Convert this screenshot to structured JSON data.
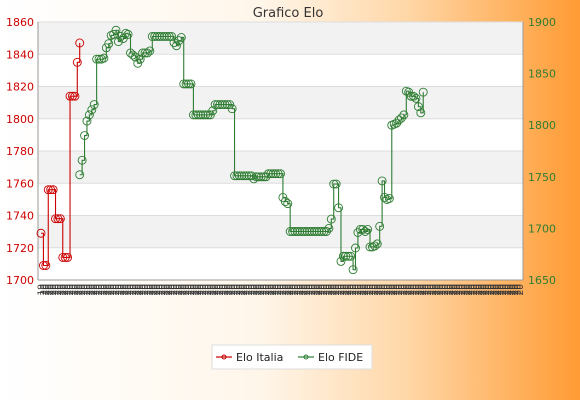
{
  "chart_data": {
    "type": "line",
    "title": "Grafico Elo",
    "legend_position": "bottom",
    "grid": true,
    "y_left": {
      "min": 1700,
      "max": 1860,
      "ticks": [
        1700,
        1720,
        1740,
        1760,
        1780,
        1800,
        1820,
        1840,
        1860
      ],
      "color": "#cc0000"
    },
    "y_right": {
      "min": 1650,
      "max": 1900,
      "ticks": [
        1650,
        1700,
        1750,
        1800,
        1850,
        1900
      ],
      "color": "#2e7d32"
    },
    "x_tick_labels": [
      "19",
      "20",
      "20",
      "20",
      "20",
      "20",
      "20",
      "20",
      "20",
      "20",
      "20",
      "20",
      "20",
      "20",
      "20",
      "20",
      "20",
      "20",
      "20",
      "20",
      "20",
      "20",
      "20",
      "20",
      "20",
      "20",
      "20",
      "20",
      "20",
      "20",
      "20",
      "20",
      "20",
      "20",
      "20",
      "20",
      "20",
      "20",
      "20",
      "20",
      "20",
      "20",
      "20",
      "20",
      "20",
      "20",
      "20",
      "20",
      "20",
      "20",
      "20",
      "20",
      "20",
      "20",
      "20",
      "20",
      "20",
      "20",
      "20",
      "20",
      "20",
      "20",
      "20",
      "20",
      "20",
      "20",
      "20",
      "20",
      "20",
      "20",
      "20",
      "20",
      "20",
      "20",
      "20",
      "20",
      "20",
      "20",
      "20",
      "20",
      "20",
      "20",
      "20",
      "20",
      "20",
      "20",
      "20",
      "20",
      "20",
      "20",
      "20",
      "20",
      "20",
      "20",
      "20",
      "20",
      "20",
      "20",
      "20",
      "20",
      "20",
      "20",
      "20",
      "20",
      "20",
      "20",
      "20",
      "20",
      "20",
      "20",
      "20",
      "20",
      "20",
      "20",
      "20",
      "20",
      "20",
      "20",
      "20",
      "20",
      "20",
      "20",
      "20",
      "20",
      "20",
      "20",
      "20",
      "20",
      "20",
      "20",
      "20",
      "20",
      "20",
      "20",
      "20",
      "20",
      "20",
      "20",
      "20",
      "20",
      "20",
      "20",
      "20",
      "20",
      "20",
      "20",
      "20",
      "20",
      "20",
      "20",
      "20",
      "20",
      "20",
      "20",
      "20",
      "20",
      "20",
      "20",
      "20",
      "20",
      "20",
      "20",
      "20",
      "20",
      "20",
      "20",
      "20",
      "20",
      "20",
      "20",
      "20",
      "20",
      "20",
      "20",
      "20",
      "20",
      "20",
      "20",
      "20",
      "20",
      "20",
      "20",
      "20",
      "20",
      "20",
      "20",
      "20",
      "20",
      "20",
      "20",
      "20",
      "20",
      "20",
      "20",
      "20",
      "20",
      "20",
      "20",
      "20"
    ],
    "series": [
      {
        "name": "Elo Italia",
        "axis": "left",
        "color": "#cc0000",
        "start_index": 0,
        "values": [
          1729,
          1709,
          1709,
          1756,
          1756,
          1756,
          1738,
          1738,
          1738,
          1714,
          1714,
          1714,
          1814,
          1814,
          1814,
          1835,
          1847
        ]
      },
      {
        "name": "Elo FIDE",
        "axis": "right",
        "color": "#2e7d32",
        "start_index": 16,
        "values": [
          1752,
          1766,
          1790,
          1804,
          1810,
          1815,
          1820,
          1864,
          1864,
          1864,
          1865,
          1875,
          1879,
          1887,
          1888,
          1892,
          1881,
          1886,
          1884,
          1889,
          1888,
          1870,
          1868,
          1866,
          1860,
          1864,
          1870,
          1870,
          1870,
          1872,
          1886,
          1886,
          1886,
          1886,
          1886,
          1886,
          1886,
          1886,
          1886,
          1880,
          1877,
          1882,
          1885,
          1840,
          1840,
          1840,
          1840,
          1810,
          1810,
          1810,
          1810,
          1810,
          1810,
          1810,
          1810,
          1814,
          1820,
          1820,
          1820,
          1820,
          1820,
          1820,
          1820,
          1816,
          1751,
          1751,
          1751,
          1751,
          1751,
          1751,
          1751,
          1751,
          1748,
          1750,
          1750,
          1750,
          1750,
          1750,
          1753,
          1753,
          1753,
          1753,
          1753,
          1753,
          1730,
          1726,
          1724,
          1697,
          1697,
          1697,
          1697,
          1697,
          1697,
          1697,
          1697,
          1697,
          1697,
          1697,
          1697,
          1697,
          1697,
          1697,
          1697,
          1700,
          1709,
          1743,
          1743,
          1720,
          1668,
          1673,
          1673,
          1673,
          1673,
          1660,
          1681,
          1696,
          1699,
          1699,
          1697,
          1699,
          1682,
          1682,
          1683,
          1685,
          1702,
          1746,
          1730,
          1728,
          1729,
          1800,
          1801,
          1802,
          1805,
          1807,
          1810,
          1833,
          1832,
          1828,
          1828,
          1826,
          1818,
          1812,
          1832
        ]
      }
    ]
  }
}
